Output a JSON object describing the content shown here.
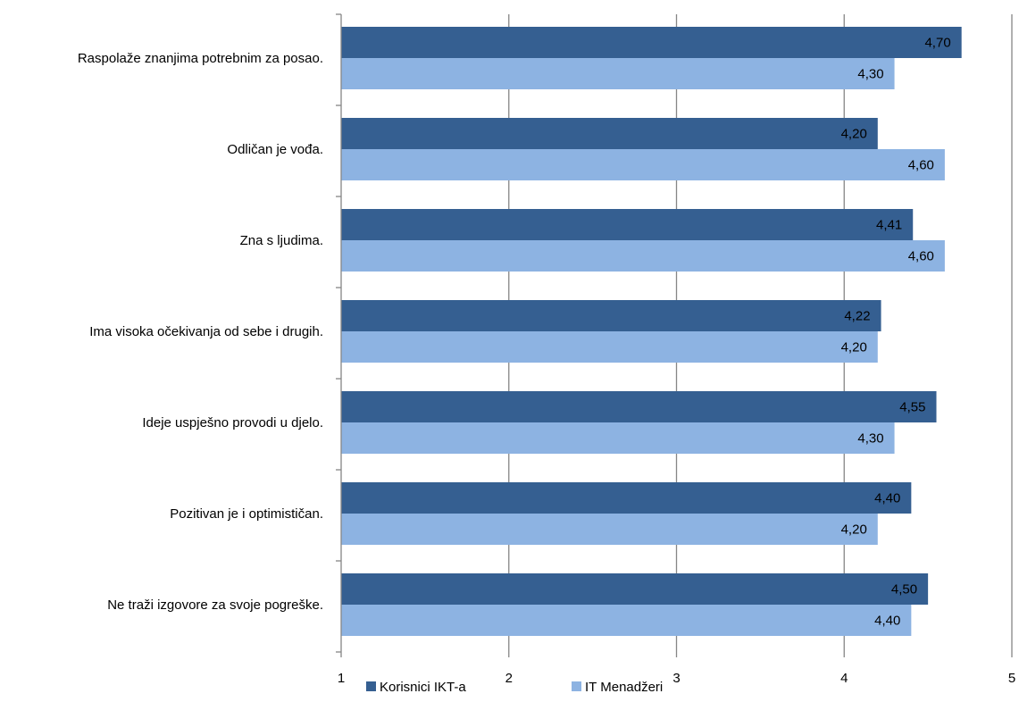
{
  "chart_data": {
    "type": "bar",
    "orientation": "horizontal",
    "categories": [
      "Raspolaže znanjima potrebnim za posao.",
      "Odličan je vođa.",
      "Zna s ljudima.",
      "Ima visoka očekivanja od sebe i drugih.",
      "Ideje uspješno provodi u djelo.",
      "Pozitivan je i optimističan.",
      "Ne traži izgovore za svoje pogreške."
    ],
    "series": [
      {
        "name": "Korisnici IKT-a",
        "values": [
          4.7,
          4.2,
          4.41,
          4.22,
          4.55,
          4.4,
          4.5
        ],
        "labels": [
          "4,70",
          "4,20",
          "4,41",
          "4,22",
          "4,55",
          "4,40",
          "4,50"
        ],
        "color": "#355f91"
      },
      {
        "name": "IT Menadžeri",
        "values": [
          4.3,
          4.6,
          4.6,
          4.2,
          4.3,
          4.2,
          4.4
        ],
        "labels": [
          "4,30",
          "4,60",
          "4,60",
          "4,20",
          "4,30",
          "4,20",
          "4,40"
        ],
        "color": "#8db3e2"
      }
    ],
    "xlim": [
      1,
      5
    ],
    "ticks": [
      "1",
      "2",
      "3",
      "4",
      "5"
    ],
    "grid": true,
    "legend_position": "bottom",
    "title": "",
    "xlabel": "",
    "ylabel": ""
  }
}
